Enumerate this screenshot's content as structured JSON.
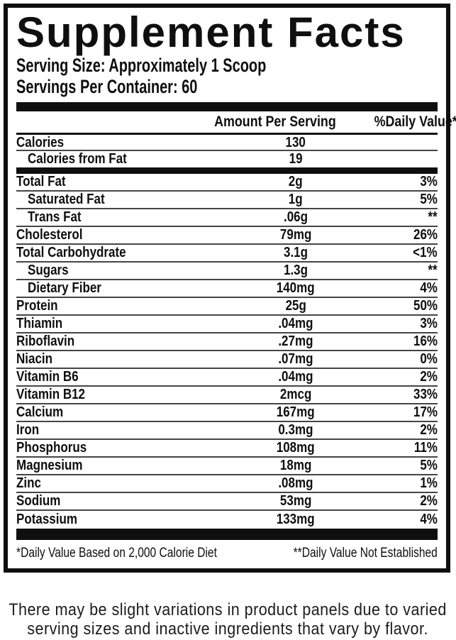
{
  "label": {
    "title": "Supplement Facts",
    "serving_size": "Serving Size: Approximately 1 Scoop",
    "servings_per_container": "Servings Per Container: 60",
    "columns": {
      "amount": "Amount Per Serving",
      "daily_value": "%Daily Value*"
    },
    "calorie_rows": [
      {
        "name": "Calories",
        "amount": "130",
        "dv": "",
        "indent": false
      },
      {
        "name": "Calories from Fat",
        "amount": "19",
        "dv": "",
        "indent": true
      }
    ],
    "nutrient_rows": [
      {
        "name": "Total Fat",
        "amount": "2g",
        "dv": "3%",
        "indent": false
      },
      {
        "name": "Saturated Fat",
        "amount": "1g",
        "dv": "5%",
        "indent": true
      },
      {
        "name": "Trans Fat",
        "amount": ".06g",
        "dv": "**",
        "indent": true
      },
      {
        "name": "Cholesterol",
        "amount": "79mg",
        "dv": "26%",
        "indent": false
      },
      {
        "name": "Total Carbohydrate",
        "amount": "3.1g",
        "dv": "<1%",
        "indent": false
      },
      {
        "name": "Sugars",
        "amount": "1.3g",
        "dv": "**",
        "indent": true
      },
      {
        "name": "Dietary Fiber",
        "amount": "140mg",
        "dv": "4%",
        "indent": true
      },
      {
        "name": "Protein",
        "amount": "25g",
        "dv": "50%",
        "indent": false
      },
      {
        "name": "Thiamin",
        "amount": ".04mg",
        "dv": "3%",
        "indent": false
      },
      {
        "name": "Riboflavin",
        "amount": ".27mg",
        "dv": "16%",
        "indent": false
      },
      {
        "name": "Niacin",
        "amount": ".07mg",
        "dv": "0%",
        "indent": false
      },
      {
        "name": "Vitamin B6",
        "amount": ".04mg",
        "dv": "2%",
        "indent": false
      },
      {
        "name": "Vitamin B12",
        "amount": "2mcg",
        "dv": "33%",
        "indent": false
      },
      {
        "name": "Calcium",
        "amount": "167mg",
        "dv": "17%",
        "indent": false
      },
      {
        "name": "Iron",
        "amount": "0.3mg",
        "dv": "2%",
        "indent": false
      },
      {
        "name": "Phosphorus",
        "amount": "108mg",
        "dv": "11%",
        "indent": false
      },
      {
        "name": "Magnesium",
        "amount": "18mg",
        "dv": "5%",
        "indent": false
      },
      {
        "name": "Zinc",
        "amount": ".08mg",
        "dv": "1%",
        "indent": false
      },
      {
        "name": "Sodium",
        "amount": "53mg",
        "dv": "2%",
        "indent": false
      },
      {
        "name": "Potassium",
        "amount": "133mg",
        "dv": "4%",
        "indent": false
      }
    ],
    "footnotes": {
      "daily_value_basis": "*Daily Value Based on 2,000 Calorie Diet",
      "not_established": "**Daily Value Not Established"
    },
    "disclaimer": "There may be slight variations in product panels due to varied serving sizes and inactive ingredients that vary by flavor."
  },
  "colors": {
    "ink": "#0f0f0f",
    "rule": "#454545",
    "background": "#ffffff"
  }
}
